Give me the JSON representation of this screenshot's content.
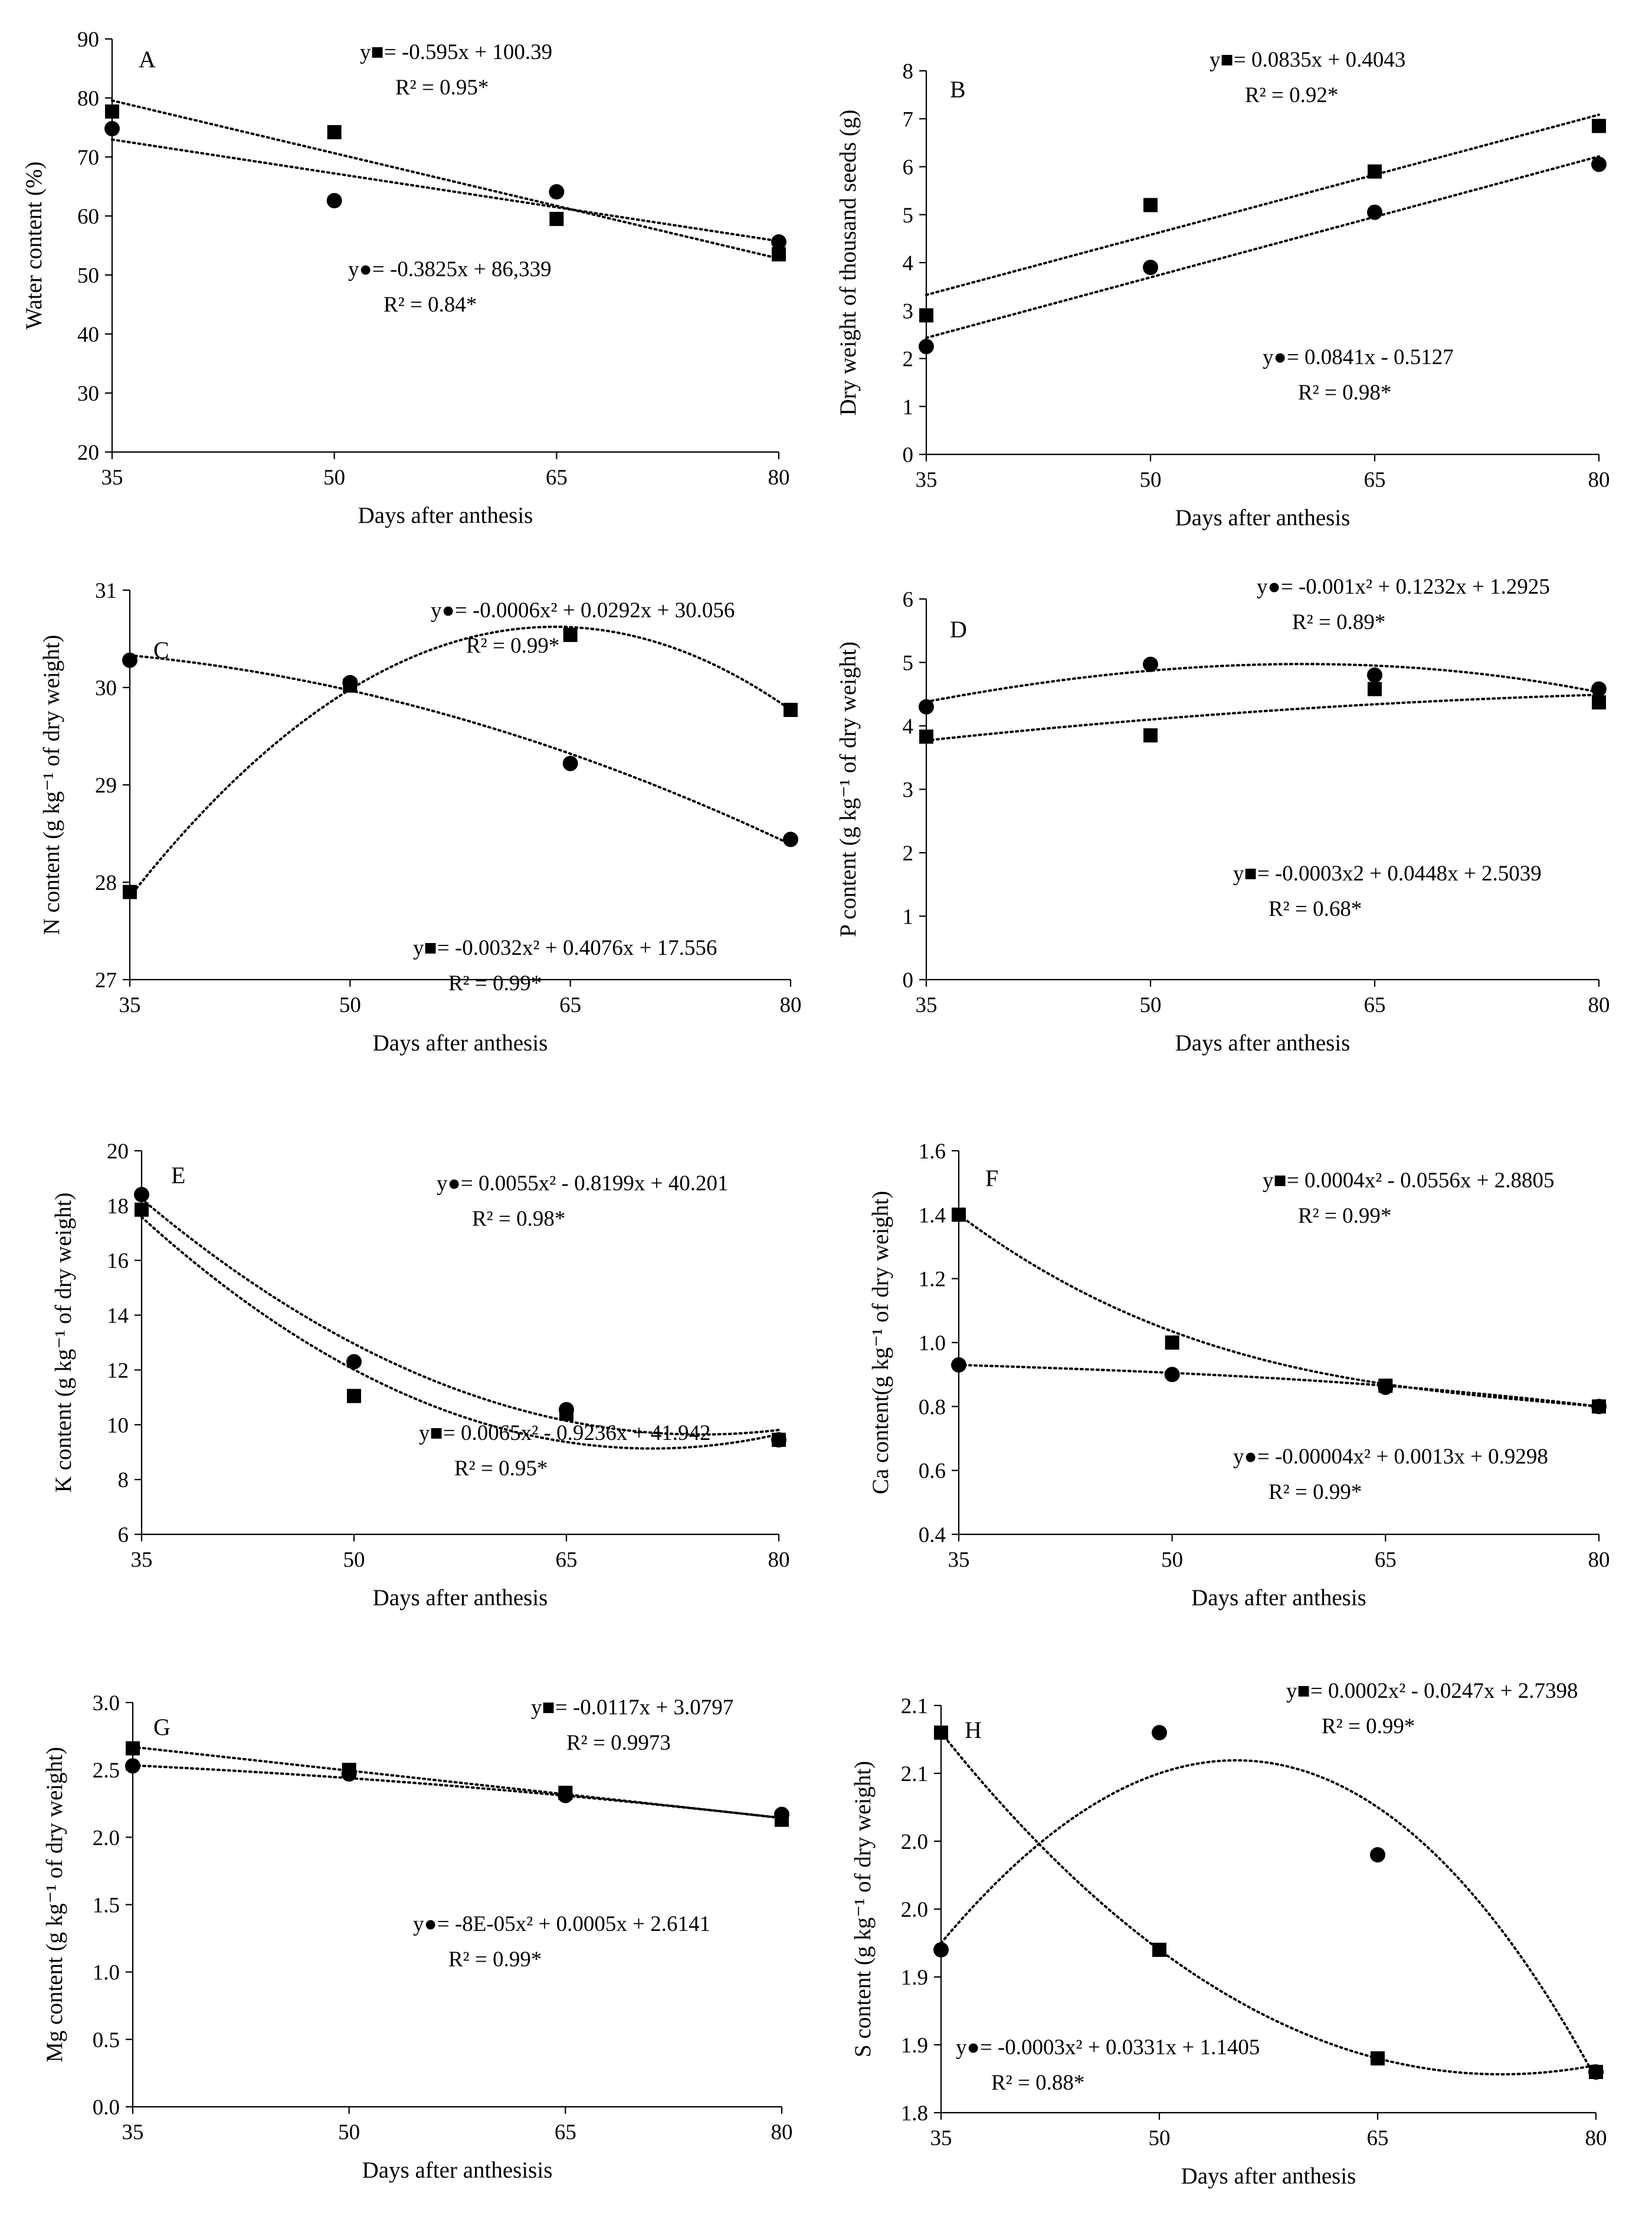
{
  "figure": {
    "colors": {
      "ink": "#000000",
      "background": "#ffffff"
    },
    "icons": [
      "square-marker-icon",
      "circle-marker-icon"
    ]
  },
  "chart_data": [
    {
      "id": "A",
      "panel_label": "A",
      "type": "scatter",
      "xlabel": "Days after anthesis",
      "ylabel": "Water content (%)",
      "xticks": [
        35,
        50,
        65,
        80
      ],
      "xlim": [
        35,
        80
      ],
      "ylim": [
        20,
        90
      ],
      "yticks": [
        "20",
        "30",
        "40",
        "50",
        "60",
        "70",
        "80",
        "90"
      ],
      "grid": false,
      "series": [
        {
          "marker": "square",
          "x": [
            35,
            50,
            65,
            80
          ],
          "y": [
            77.7,
            74.2,
            59.5,
            53.5
          ],
          "fit": {
            "kind": "poly",
            "coef": [
              100.39,
              -0.595
            ]
          },
          "eq": "y■= -0.595x + 100.39",
          "r2": "R² = 0.95*"
        },
        {
          "marker": "circle",
          "x": [
            35,
            50,
            65,
            80
          ],
          "y": [
            74.8,
            62.6,
            64.1,
            55.6
          ],
          "fit": {
            "kind": "poly",
            "coef": [
              86.339,
              -0.3825
            ]
          },
          "eq": "y●= -0.3825x + 86,339",
          "r2": "R² = 0.84*"
        }
      ]
    },
    {
      "id": "B",
      "panel_label": "B",
      "type": "scatter",
      "xlabel": "Days after anthesis",
      "ylabel": "Dry weight of thousand seeds (g)",
      "xticks": [
        35,
        50,
        65,
        80
      ],
      "xlim": [
        35,
        80
      ],
      "ylim": [
        0,
        8
      ],
      "yticks": [
        "0",
        "1",
        "2",
        "3",
        "4",
        "5",
        "6",
        "7",
        "8"
      ],
      "grid": false,
      "series": [
        {
          "marker": "square",
          "x": [
            35,
            50,
            65,
            80
          ],
          "y": [
            2.9,
            5.2,
            5.9,
            6.85
          ],
          "fit": {
            "kind": "poly",
            "coef": [
              0.4043,
              0.0835
            ]
          },
          "eq": "y■= 0.0835x + 0.4043",
          "r2": "R² = 0.92*"
        },
        {
          "marker": "circle",
          "x": [
            35,
            50,
            65,
            80
          ],
          "y": [
            2.25,
            3.9,
            5.05,
            6.05
          ],
          "fit": {
            "kind": "poly",
            "coef": [
              -0.5127,
              0.0841
            ]
          },
          "eq": "y●= 0.0841x - 0.5127",
          "r2": "R² = 0.98*"
        }
      ]
    },
    {
      "id": "C",
      "panel_label": "C",
      "type": "scatter",
      "xlabel": "Days after anthesis",
      "ylabel": "N content (g kg⁻¹ of dry weight)",
      "xticks": [
        35,
        50,
        65,
        80
      ],
      "xlim": [
        35,
        80
      ],
      "ylim": [
        27,
        31
      ],
      "yticks": [
        "27",
        "28",
        "29",
        "30",
        "31"
      ],
      "grid": false,
      "series": [
        {
          "marker": "circle",
          "x": [
            35,
            50,
            65,
            80
          ],
          "y": [
            30.28,
            30.05,
            29.22,
            28.44
          ],
          "fit": {
            "kind": "points",
            "xs": [
              35,
              50,
              65,
              80
            ],
            "ys": [
              30.33,
              29.97,
              29.32,
              28.39
            ]
          },
          "eq": "y●= -0.0006x² + 0.0292x + 30.056",
          "r2": "R² = 0.99*"
        },
        {
          "marker": "square",
          "x": [
            35,
            50,
            65,
            80
          ],
          "y": [
            27.9,
            30.02,
            30.54,
            29.77
          ],
          "fit": {
            "kind": "points",
            "xs": [
              35,
              50,
              65,
              80
            ],
            "ys": [
              27.85,
              29.98,
              30.62,
              29.77
            ]
          },
          "eq": "y■= -0.0032x² + 0.4076x + 17.556",
          "r2": "R² = 0.99*"
        }
      ]
    },
    {
      "id": "D",
      "panel_label": "D",
      "type": "scatter",
      "xlabel": "Days after anthesis",
      "ylabel": "P content (g kg⁻¹ of dry weight)",
      "xticks": [
        35,
        50,
        65,
        80
      ],
      "xlim": [
        35,
        80
      ],
      "ylim": [
        0,
        6
      ],
      "yticks": [
        "0",
        "1",
        "2",
        "3",
        "4",
        "5",
        "6"
      ],
      "grid": false,
      "series": [
        {
          "marker": "circle",
          "x": [
            35,
            50,
            65,
            80
          ],
          "y": [
            4.3,
            4.97,
            4.8,
            4.58
          ],
          "fit": {
            "kind": "points",
            "xs": [
              35,
              50,
              65,
              80
            ],
            "ys": [
              4.38,
              4.87,
              4.95,
              4.53
            ]
          },
          "eq": "y●= -0.001x² + 0.1232x + 1.2925",
          "r2": "R² = 0.89*"
        },
        {
          "marker": "square",
          "x": [
            35,
            50,
            65,
            80
          ],
          "y": [
            3.83,
            3.85,
            4.58,
            4.37
          ],
          "fit": {
            "kind": "points",
            "xs": [
              35,
              50,
              65,
              80
            ],
            "ys": [
              3.77,
              4.1,
              4.34,
              4.49
            ]
          },
          "eq": "y■= -0.0003x2 + 0.0448x + 2.5039",
          "r2": "R² = 0.68*"
        }
      ]
    },
    {
      "id": "E",
      "panel_label": "E",
      "type": "scatter",
      "xlabel": "Days after anthesis",
      "ylabel": "K content (g kg⁻¹ of dry weight)",
      "xticks": [
        35,
        50,
        65,
        80
      ],
      "xlim": [
        35,
        80
      ],
      "ylim": [
        6,
        20
      ],
      "yticks": [
        "6",
        "8",
        "10",
        "12",
        "14",
        "16",
        "18",
        "20"
      ],
      "grid": false,
      "series": [
        {
          "marker": "circle",
          "x": [
            35,
            50,
            65,
            80
          ],
          "y": [
            18.4,
            12.3,
            10.55,
            9.45
          ],
          "fit": {
            "kind": "poly",
            "coef": [
              40.201,
              -0.8199,
              0.0055
            ]
          },
          "eq": "y●= 0.0055x² - 0.8199x + 40.201",
          "r2": "R² = 0.98*"
        },
        {
          "marker": "square",
          "x": [
            35,
            50,
            65,
            80
          ],
          "y": [
            17.85,
            11.05,
            10.4,
            9.45
          ],
          "fit": {
            "kind": "poly",
            "coef": [
              41.942,
              -0.9236,
              0.0065
            ]
          },
          "eq": "y■= 0.0065x² - 0.9236x + 41.942",
          "r2": "R² = 0.95*"
        }
      ]
    },
    {
      "id": "F",
      "panel_label": "F",
      "type": "scatter",
      "xlabel": "Days after anthesis",
      "ylabel": "Ca content(g kg⁻¹ of dry weight)",
      "xticks": [
        35,
        50,
        65,
        80
      ],
      "xlim": [
        35,
        80
      ],
      "ylim": [
        0.4,
        1.6
      ],
      "yticks": [
        "0.4",
        "0.6",
        "0.8",
        "1.0",
        "1.2",
        "1.4",
        "1.6"
      ],
      "grid": false,
      "series": [
        {
          "marker": "square",
          "x": [
            35,
            50,
            65,
            80
          ],
          "y": [
            1.4,
            1.0,
            0.865,
            0.8
          ],
          "fit": {
            "kind": "points",
            "xs": [
              35,
              50,
              65,
              80
            ],
            "ys": [
              1.4,
              1.035,
              0.87,
              0.8
            ]
          },
          "eq": "y■= 0.0004x² - 0.0556x + 2.8805",
          "r2": "R² = 0.99*"
        },
        {
          "marker": "circle",
          "x": [
            35,
            50,
            65,
            80
          ],
          "y": [
            0.93,
            0.9,
            0.86,
            0.8
          ],
          "fit": {
            "kind": "points",
            "xs": [
              35,
              50,
              65,
              80
            ],
            "ys": [
              0.93,
              0.905,
              0.865,
              0.8
            ]
          },
          "eq": "y●= -0.00004x² + 0.0013x + 0.9298",
          "r2": "R² = 0.99*"
        }
      ]
    },
    {
      "id": "G",
      "panel_label": "G",
      "type": "scatter",
      "xlabel": "Days after anthesisis",
      "ylabel": "Mg content (g kg⁻¹ of dry weight)",
      "xticks": [
        35,
        50,
        65,
        80
      ],
      "xlim": [
        35,
        80
      ],
      "ylim": [
        0,
        3
      ],
      "yticks": [
        "0.0",
        "0.5",
        "1.0",
        "1.5",
        "2.0",
        "2.5",
        "3.0"
      ],
      "grid": false,
      "series": [
        {
          "marker": "square",
          "x": [
            35,
            50,
            65,
            80
          ],
          "y": [
            2.66,
            2.5,
            2.33,
            2.13
          ],
          "fit": {
            "kind": "poly",
            "coef": [
              3.0797,
              -0.0117
            ]
          },
          "eq": "y■= -0.0117x + 3.0797",
          "r2": "R² = 0.9973"
        },
        {
          "marker": "circle",
          "x": [
            35,
            50,
            65,
            80
          ],
          "y": [
            2.53,
            2.47,
            2.31,
            2.17
          ],
          "fit": {
            "kind": "poly",
            "coef": [
              2.6141,
              0.0005,
              -8e-05
            ]
          },
          "eq": "y●= -8E-05x² + 0.0005x + 2.6141",
          "r2": "R² = 0.99*"
        }
      ]
    },
    {
      "id": "H",
      "panel_label": "H",
      "type": "scatter",
      "xlabel": "Days after anthesis",
      "ylabel": "S content (g kg⁻¹ of dry weight)",
      "xticks": [
        35,
        50,
        65,
        80
      ],
      "xlim": [
        35,
        80
      ],
      "ylim": [
        1.8,
        2.1
      ],
      "yticks": [
        "1.8",
        "1.9",
        "1.9",
        "2.0",
        "2.0",
        "2.1",
        "2.1"
      ],
      "grid": false,
      "series": [
        {
          "marker": "square",
          "x": [
            35,
            50,
            65,
            80
          ],
          "y": [
            2.08,
            1.92,
            1.84,
            1.83
          ],
          "fit": {
            "kind": "points",
            "xs": [
              35,
              50,
              65,
              80
            ],
            "ys": [
              2.08,
              1.92,
              1.84,
              1.835
            ]
          },
          "eq": "y■= 0.0002x² - 0.0247x + 2.7398",
          "r2": "R² = 0.99*"
        },
        {
          "marker": "circle",
          "x": [
            35,
            50,
            65,
            80
          ],
          "y": [
            1.92,
            2.08,
            1.99,
            1.83
          ],
          "fit": {
            "kind": "points",
            "xs": [
              35,
              50,
              65,
              80
            ],
            "ys": [
              1.925,
              2.05,
              2.025,
              1.825
            ]
          },
          "eq": "y●= -0.0003x² + 0.0331x + 1.1405",
          "r2": "R² = 0.88*"
        }
      ]
    }
  ]
}
